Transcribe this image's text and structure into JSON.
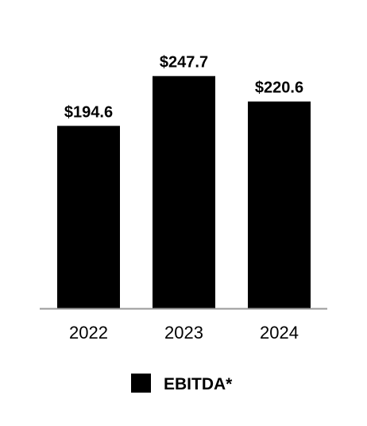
{
  "chart_data": {
    "type": "bar",
    "categories": [
      "2022",
      "2023",
      "2024"
    ],
    "series": [
      {
        "name": "EBITDA*",
        "values": [
          194.6,
          247.7,
          220.6
        ],
        "value_labels": [
          "$194.6",
          "$247.7",
          "$220.6"
        ],
        "color": "#000000"
      }
    ],
    "ylim": [
      0,
      250
    ],
    "grid": false,
    "axis_color": "#999999",
    "legend": "bottom-center"
  }
}
